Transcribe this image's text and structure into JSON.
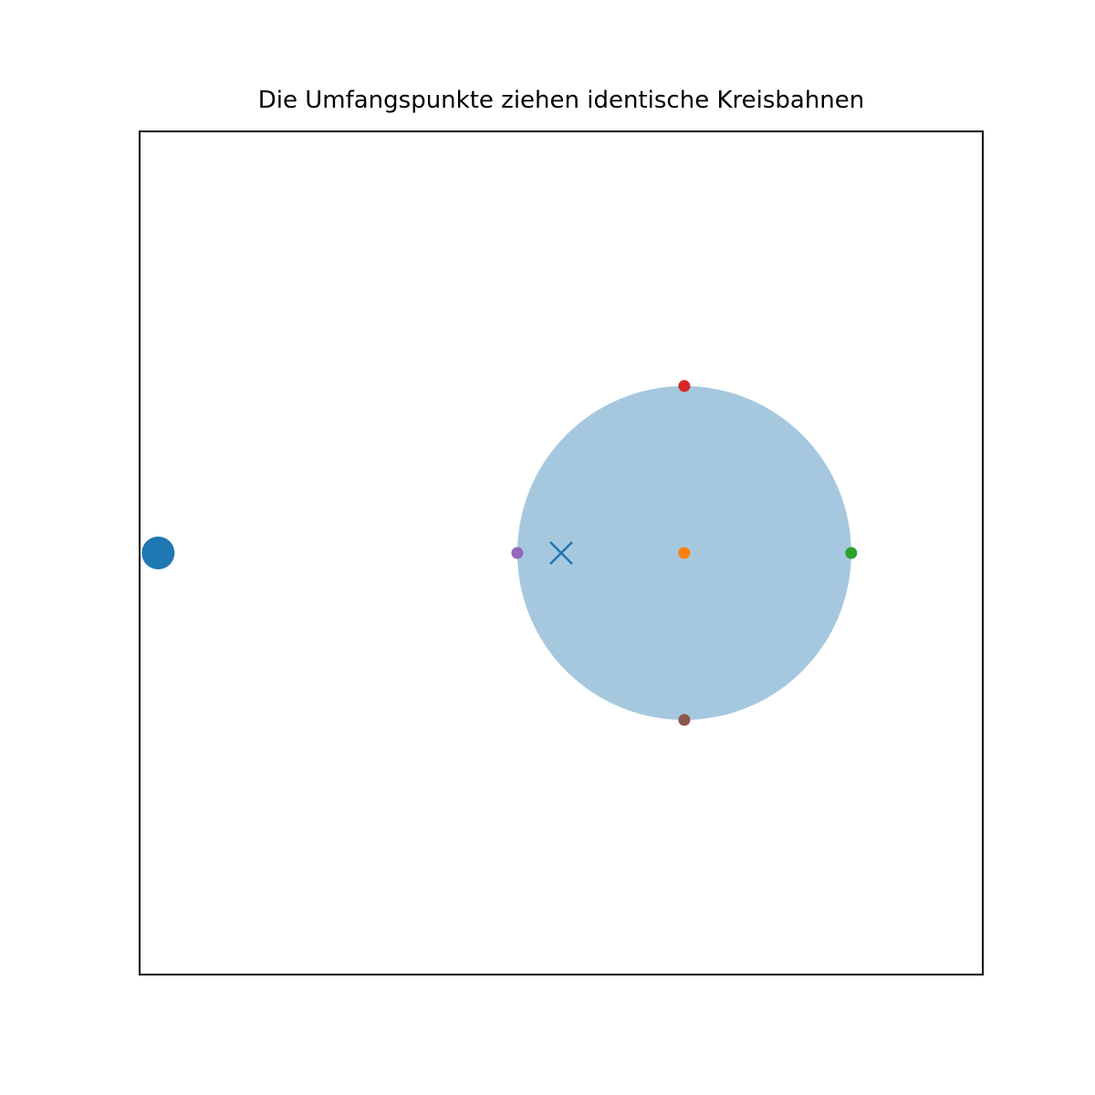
{
  "chart_data": {
    "type": "scatter",
    "title": "Die Umfangspunkte ziehen identische Kreisbahnen",
    "xlabel": "",
    "ylabel": "",
    "axes_visible": false,
    "aspect": "equal",
    "grid": false,
    "legend": false,
    "xlim": [
      -2.5,
      2.5
    ],
    "ylim": [
      -2.5,
      2.5
    ],
    "disk": {
      "center": [
        0.73,
        0.0
      ],
      "radius": 0.99,
      "color": "#a6c8df"
    },
    "points": [
      {
        "label": "large-blue-point",
        "x": -2.39,
        "y": 0.0,
        "color": "#1f77b4",
        "marker": "circle",
        "size": "large"
      },
      {
        "label": "center-point",
        "x": 0.73,
        "y": 0.0,
        "color": "#ff7f0e",
        "marker": "circle",
        "size": "small"
      },
      {
        "label": "right-point",
        "x": 1.72,
        "y": 0.0,
        "color": "#2ca02c",
        "marker": "circle",
        "size": "small"
      },
      {
        "label": "top-point",
        "x": 0.73,
        "y": 0.99,
        "color": "#d62728",
        "marker": "circle",
        "size": "small"
      },
      {
        "label": "left-point",
        "x": -0.26,
        "y": 0.0,
        "color": "#9467bd",
        "marker": "circle",
        "size": "small"
      },
      {
        "label": "bottom-point",
        "x": 0.73,
        "y": -0.99,
        "color": "#8c564b",
        "marker": "circle",
        "size": "small"
      },
      {
        "label": "x-marker",
        "x": 0.0,
        "y": 0.0,
        "color": "#1f77b4",
        "marker": "x",
        "size": "medium"
      }
    ]
  }
}
